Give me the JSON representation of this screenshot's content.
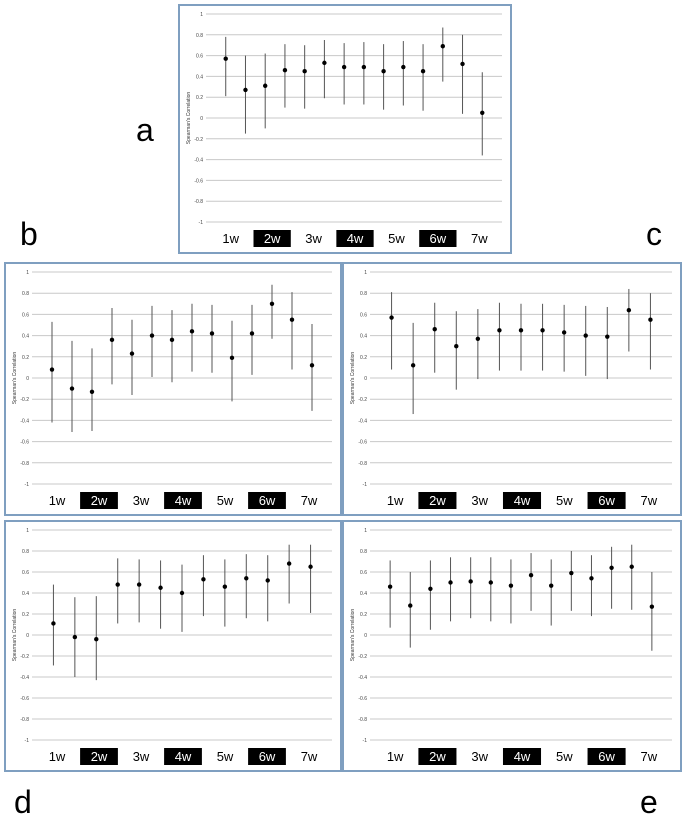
{
  "panel_labels": {
    "a": "a",
    "b": "b",
    "c": "c",
    "d": "d",
    "e": "e"
  },
  "colors": {
    "frame_border": "#7f9fc0",
    "gridline": "#c8c8c8",
    "error_bar": "#555555",
    "point": "#000000",
    "week_dark_bg": "#000000",
    "week_dark_text": "#ffffff",
    "week_light_text": "#000000"
  },
  "chart_data": [
    {
      "panel": "a",
      "type": "scatter",
      "ylabel": "Spearman's Correlation",
      "ylim": [
        -1,
        1
      ],
      "yticks": [
        "1",
        "0.8",
        "0.6",
        "0.4",
        "0.2",
        "0",
        "-0.2",
        "-0.4",
        "-0.6",
        "-0.8",
        "-1"
      ],
      "grid": true,
      "week_labels": [
        "1w",
        "2w",
        "3w",
        "4w",
        "5w",
        "6w",
        "7w"
      ],
      "week_highlight": [
        false,
        true,
        false,
        true,
        false,
        true,
        false
      ],
      "points": [
        {
          "y": 0.57,
          "lo": 0.21,
          "hi": 0.78
        },
        {
          "y": 0.27,
          "lo": -0.15,
          "hi": 0.6
        },
        {
          "y": 0.31,
          "lo": -0.1,
          "hi": 0.62
        },
        {
          "y": 0.46,
          "lo": 0.1,
          "hi": 0.71
        },
        {
          "y": 0.45,
          "lo": 0.09,
          "hi": 0.7
        },
        {
          "y": 0.53,
          "lo": 0.19,
          "hi": 0.75
        },
        {
          "y": 0.49,
          "lo": 0.13,
          "hi": 0.72
        },
        {
          "y": 0.49,
          "lo": 0.13,
          "hi": 0.73
        },
        {
          "y": 0.45,
          "lo": 0.08,
          "hi": 0.71
        },
        {
          "y": 0.49,
          "lo": 0.12,
          "hi": 0.74
        },
        {
          "y": 0.45,
          "lo": 0.07,
          "hi": 0.71
        },
        {
          "y": 0.69,
          "lo": 0.35,
          "hi": 0.87
        },
        {
          "y": 0.52,
          "lo": 0.04,
          "hi": 0.8
        },
        {
          "y": 0.05,
          "lo": -0.36,
          "hi": 0.44
        }
      ]
    },
    {
      "panel": "b",
      "type": "scatter",
      "ylabel": "Spearman's Correlation",
      "ylim": [
        -1,
        1
      ],
      "yticks": [
        "1",
        "0.8",
        "0.6",
        "0.4",
        "0.2",
        "0",
        "-0.2",
        "-0.4",
        "-0.6",
        "-0.8",
        "-1"
      ],
      "grid": true,
      "week_labels": [
        "1w",
        "2w",
        "3w",
        "4w",
        "5w",
        "6w",
        "7w"
      ],
      "week_highlight": [
        false,
        true,
        false,
        true,
        false,
        true,
        false
      ],
      "points": [
        {
          "y": 0.08,
          "lo": -0.42,
          "hi": 0.53
        },
        {
          "y": -0.1,
          "lo": -0.51,
          "hi": 0.35
        },
        {
          "y": -0.13,
          "lo": -0.5,
          "hi": 0.28
        },
        {
          "y": 0.36,
          "lo": -0.06,
          "hi": 0.66
        },
        {
          "y": 0.23,
          "lo": -0.16,
          "hi": 0.55
        },
        {
          "y": 0.4,
          "lo": 0.01,
          "hi": 0.68
        },
        {
          "y": 0.36,
          "lo": -0.04,
          "hi": 0.64
        },
        {
          "y": 0.44,
          "lo": 0.06,
          "hi": 0.7
        },
        {
          "y": 0.42,
          "lo": 0.05,
          "hi": 0.69
        },
        {
          "y": 0.19,
          "lo": -0.22,
          "hi": 0.54
        },
        {
          "y": 0.42,
          "lo": 0.03,
          "hi": 0.69
        },
        {
          "y": 0.7,
          "lo": 0.37,
          "hi": 0.88
        },
        {
          "y": 0.55,
          "lo": 0.08,
          "hi": 0.81
        },
        {
          "y": 0.12,
          "lo": -0.31,
          "hi": 0.51
        }
      ]
    },
    {
      "panel": "c",
      "type": "scatter",
      "ylabel": "Spearman's Correlation",
      "ylim": [
        -1,
        1
      ],
      "yticks": [
        "1",
        "0.8",
        "0.6",
        "0.4",
        "0.2",
        "0",
        "-0.2",
        "-0.4",
        "-0.6",
        "-0.8",
        "-1"
      ],
      "grid": true,
      "week_labels": [
        "1w",
        "2w",
        "3w",
        "4w",
        "5w",
        "6w",
        "7w"
      ],
      "week_highlight": [
        false,
        true,
        false,
        true,
        false,
        true,
        false
      ],
      "points": [
        {
          "y": 0.57,
          "lo": 0.08,
          "hi": 0.81
        },
        {
          "y": 0.12,
          "lo": -0.34,
          "hi": 0.52
        },
        {
          "y": 0.46,
          "lo": 0.05,
          "hi": 0.71
        },
        {
          "y": 0.3,
          "lo": -0.11,
          "hi": 0.63
        },
        {
          "y": 0.37,
          "lo": -0.01,
          "hi": 0.65
        },
        {
          "y": 0.45,
          "lo": 0.07,
          "hi": 0.71
        },
        {
          "y": 0.45,
          "lo": 0.07,
          "hi": 0.7
        },
        {
          "y": 0.45,
          "lo": 0.07,
          "hi": 0.7
        },
        {
          "y": 0.43,
          "lo": 0.06,
          "hi": 0.69
        },
        {
          "y": 0.4,
          "lo": 0.02,
          "hi": 0.68
        },
        {
          "y": 0.39,
          "lo": -0.01,
          "hi": 0.67
        },
        {
          "y": 0.64,
          "lo": 0.25,
          "hi": 0.84
        },
        {
          "y": 0.55,
          "lo": 0.08,
          "hi": 0.8
        }
      ]
    },
    {
      "panel": "d",
      "type": "scatter",
      "ylabel": "Spearman's Correlation",
      "ylim": [
        -1,
        1
      ],
      "yticks": [
        "1",
        "0.8",
        "0.6",
        "0.4",
        "0.2",
        "0",
        "-0.2",
        "-0.4",
        "-0.6",
        "-0.8",
        "-1"
      ],
      "grid": true,
      "week_labels": [
        "1w",
        "2w",
        "3w",
        "4w",
        "5w",
        "6w",
        "7w"
      ],
      "week_highlight": [
        false,
        true,
        false,
        true,
        false,
        true,
        false
      ],
      "points": [
        {
          "y": 0.11,
          "lo": -0.29,
          "hi": 0.48
        },
        {
          "y": -0.02,
          "lo": -0.4,
          "hi": 0.36
        },
        {
          "y": -0.04,
          "lo": -0.43,
          "hi": 0.37
        },
        {
          "y": 0.48,
          "lo": 0.11,
          "hi": 0.73
        },
        {
          "y": 0.48,
          "lo": 0.12,
          "hi": 0.72
        },
        {
          "y": 0.45,
          "lo": 0.06,
          "hi": 0.71
        },
        {
          "y": 0.4,
          "lo": 0.03,
          "hi": 0.67
        },
        {
          "y": 0.53,
          "lo": 0.18,
          "hi": 0.76
        },
        {
          "y": 0.46,
          "lo": 0.08,
          "hi": 0.72
        },
        {
          "y": 0.54,
          "lo": 0.16,
          "hi": 0.77
        },
        {
          "y": 0.52,
          "lo": 0.13,
          "hi": 0.76
        },
        {
          "y": 0.68,
          "lo": 0.3,
          "hi": 0.86
        },
        {
          "y": 0.65,
          "lo": 0.21,
          "hi": 0.86
        }
      ]
    },
    {
      "panel": "e",
      "type": "scatter",
      "ylabel": "Spearman's Correlation",
      "ylim": [
        -1,
        1
      ],
      "yticks": [
        "1",
        "0.8",
        "0.6",
        "0.4",
        "0.2",
        "0",
        "-0.2",
        "-0.4",
        "-0.6",
        "-0.8",
        "-1"
      ],
      "grid": true,
      "week_labels": [
        "1w",
        "2w",
        "3w",
        "4w",
        "5w",
        "6w",
        "7w"
      ],
      "week_highlight": [
        false,
        true,
        false,
        true,
        false,
        true,
        false
      ],
      "points": [
        {
          "y": 0.46,
          "lo": 0.07,
          "hi": 0.71
        },
        {
          "y": 0.28,
          "lo": -0.12,
          "hi": 0.6
        },
        {
          "y": 0.44,
          "lo": 0.05,
          "hi": 0.71
        },
        {
          "y": 0.5,
          "lo": 0.13,
          "hi": 0.74
        },
        {
          "y": 0.51,
          "lo": 0.16,
          "hi": 0.74
        },
        {
          "y": 0.5,
          "lo": 0.13,
          "hi": 0.74
        },
        {
          "y": 0.47,
          "lo": 0.11,
          "hi": 0.72
        },
        {
          "y": 0.57,
          "lo": 0.23,
          "hi": 0.78
        },
        {
          "y": 0.47,
          "lo": 0.09,
          "hi": 0.72
        },
        {
          "y": 0.59,
          "lo": 0.23,
          "hi": 0.8
        },
        {
          "y": 0.54,
          "lo": 0.18,
          "hi": 0.76
        },
        {
          "y": 0.64,
          "lo": 0.25,
          "hi": 0.84
        },
        {
          "y": 0.65,
          "lo": 0.24,
          "hi": 0.86
        },
        {
          "y": 0.27,
          "lo": -0.15,
          "hi": 0.6
        }
      ]
    }
  ]
}
